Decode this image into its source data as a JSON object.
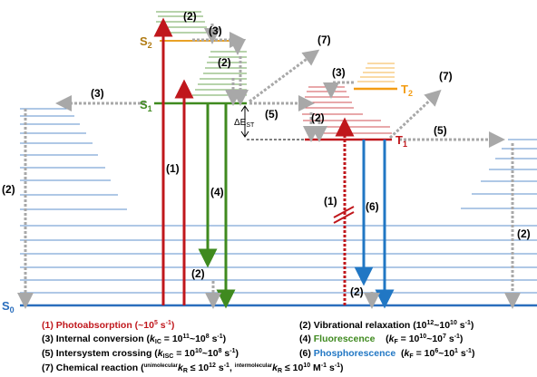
{
  "states": {
    "s0": "S",
    "s0_sub": "0",
    "s1": "S",
    "s1_sub": "1",
    "s2": "S",
    "s2_sub": "2",
    "t1": "T",
    "t1_sub": "1",
    "t2": "T",
    "t2_sub": "2"
  },
  "gap": {
    "delta": "ΔE",
    "sub": "ST"
  },
  "process_numbers": {
    "p1": "(1)",
    "p1b": "(1)",
    "p2": "(2)",
    "p3": "(3)",
    "p4": "(4)",
    "p5": "(5)",
    "p6": "(6)",
    "p7": "(7)"
  },
  "legend": {
    "l1": {
      "text": "(1) Photoabsorption  (~10",
      "sup": "5",
      "tail": " s",
      "sup2": "-1",
      "end": ")"
    },
    "l2": {
      "text": "(2) Vibrational relaxation (10",
      "sup": "12",
      "mid": "~10",
      "sup2": "10",
      "end": " s",
      "sup3": "-1",
      "close": ")"
    },
    "l3": {
      "text": "(3) Internal conversion (",
      "k": "k",
      "ksub": "IC",
      "eq": " = 10",
      "sup": "11",
      "mid": "~10",
      "sup2": "8",
      "end": " s",
      "sup3": "-1",
      "close": ")"
    },
    "l4": {
      "num": "(4) ",
      "name": "Fluorescence",
      "pre": "    (",
      "k": "k",
      "ksub": "F",
      "eq": " = 10",
      "sup": "10",
      "mid": "~10",
      "sup2": "7",
      "end": " s",
      "sup3": "-1",
      "close": ")"
    },
    "l5": {
      "text": "(5) Intersystem crossing  (",
      "k": "k",
      "ksub": "ISC",
      "eq": " = 10",
      "sup": "10",
      "mid": "~10",
      "sup2": "8",
      "end": " s",
      "sup3": "-1",
      "close": ")"
    },
    "l6": {
      "num": "(6) ",
      "name": "Phosphorescence",
      "pre": "  (",
      "k": "k",
      "ksub": "F",
      "eq": " = 10",
      "sup": "6",
      "mid": "~10",
      "sup2": "1",
      "end": " s",
      "sup3": "-1",
      "close": ")"
    },
    "l7": {
      "text": "(7) Chemical reaction (",
      "supA": "unimolecular",
      "kA": "k",
      "kAsub": "R",
      "leA": " ≤ 10",
      "supA2": "12",
      "unitA": " s",
      "supA3": "-1",
      "comma": ", ",
      "supB": "intermolecular",
      "kB": "k",
      "kBsub": "R",
      "leB": " ≤ 10",
      "supB2": "10",
      "unitB": " M",
      "supB3": "-1",
      "unitB2": " s",
      "supB4": "-1",
      "close": ")"
    }
  },
  "colors": {
    "absorption": "#c0171c",
    "fluorescence": "#3f8a1f",
    "phosphorescence": "#2177c4",
    "s2_level": "#e9a126",
    "t2_level": "#f39c12",
    "blue_line": "#2a6ebd",
    "dotted": "#a8a8a8"
  }
}
